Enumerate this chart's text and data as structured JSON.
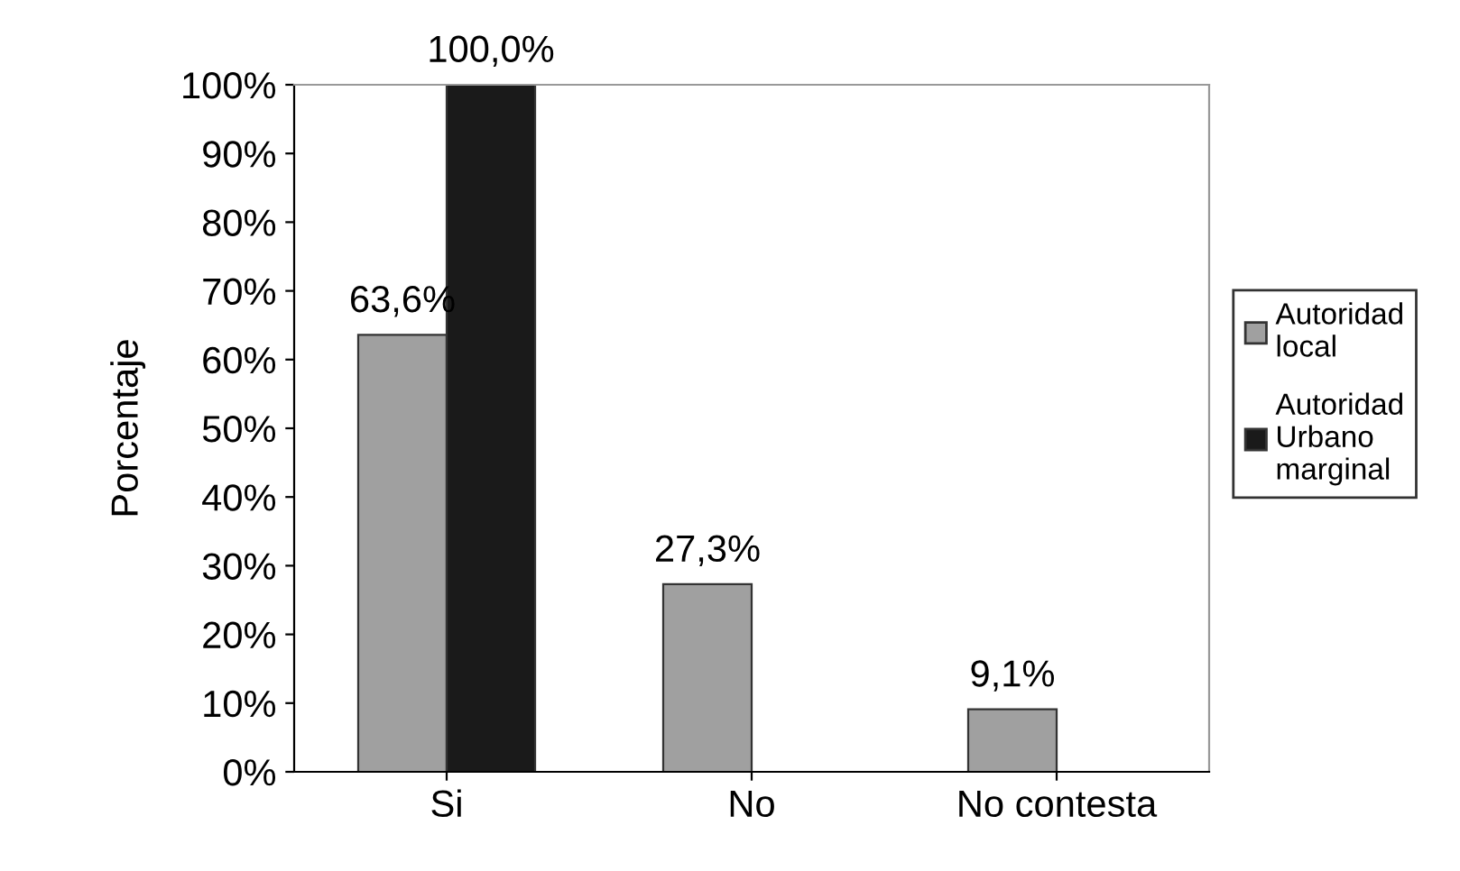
{
  "chart_data": {
    "type": "bar",
    "ylabel": "Porcentaje",
    "categories": [
      "Si",
      "No",
      "No contesta"
    ],
    "series": [
      {
        "name": "Autoridad\nlocal",
        "color": "#a0a0a0",
        "values": [
          63.6,
          27.3,
          9.1
        ],
        "value_labels": [
          "63,6%",
          "27,3%",
          "9,1%"
        ]
      },
      {
        "name": "Autoridad\nUrbano\nmarginal",
        "color": "#1a1a1a",
        "values": [
          100.0,
          null,
          null
        ],
        "value_labels": [
          "100,0%",
          null,
          null
        ]
      }
    ],
    "ylim": [
      0,
      100
    ],
    "yticks": [
      {
        "value": 0,
        "label": "0%"
      },
      {
        "value": 10,
        "label": "10%"
      },
      {
        "value": 20,
        "label": "20%"
      },
      {
        "value": 30,
        "label": "30%"
      },
      {
        "value": 40,
        "label": "40%"
      },
      {
        "value": 50,
        "label": "50%"
      },
      {
        "value": 60,
        "label": "60%"
      },
      {
        "value": 70,
        "label": "70%"
      },
      {
        "value": 80,
        "label": "80%"
      },
      {
        "value": 90,
        "label": "90%"
      },
      {
        "value": 100,
        "label": "100%"
      }
    ],
    "grid": false,
    "legend": "right"
  }
}
